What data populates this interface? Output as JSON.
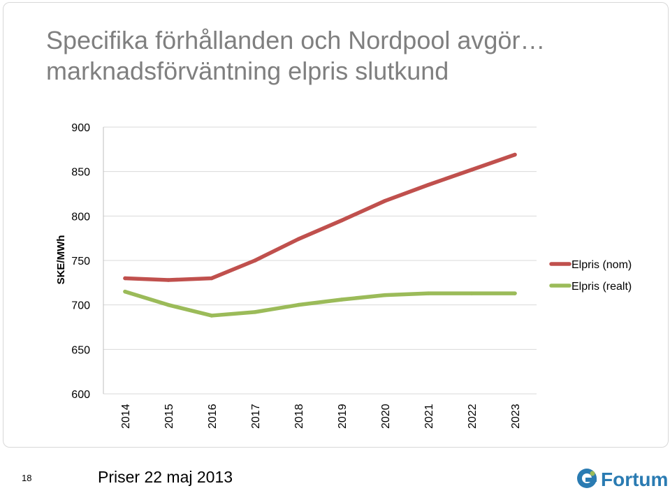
{
  "slide": {
    "title_lines": [
      "Specifika förhållanden och Nordpool avgör…",
      "marknadsförväntning elpris slutkund"
    ],
    "page_number": "18",
    "footer_text": "Priser 22 maj 2013",
    "logo_text": "Fortum",
    "logo_color": "#2a7bb2"
  },
  "chart_data": {
    "type": "line",
    "categories": [
      "2014",
      "2015",
      "2016",
      "2017",
      "2018",
      "2019",
      "2020",
      "2021",
      "2022",
      "2023"
    ],
    "ylabel": "SKE/MWh",
    "ylim": [
      600,
      900
    ],
    "yticks": [
      600,
      650,
      700,
      750,
      800,
      850,
      900
    ],
    "grid": true,
    "legend_position": "right",
    "series": [
      {
        "name": "Elpris (nom)",
        "color": "#c0504d",
        "values": [
          730,
          728,
          730,
          750,
          774,
          795,
          817,
          835,
          852,
          869
        ]
      },
      {
        "name": "Elpris (realt)",
        "color": "#9bbb59",
        "values": [
          715,
          700,
          688,
          692,
          700,
          706,
          711,
          713,
          713,
          713
        ]
      }
    ]
  }
}
